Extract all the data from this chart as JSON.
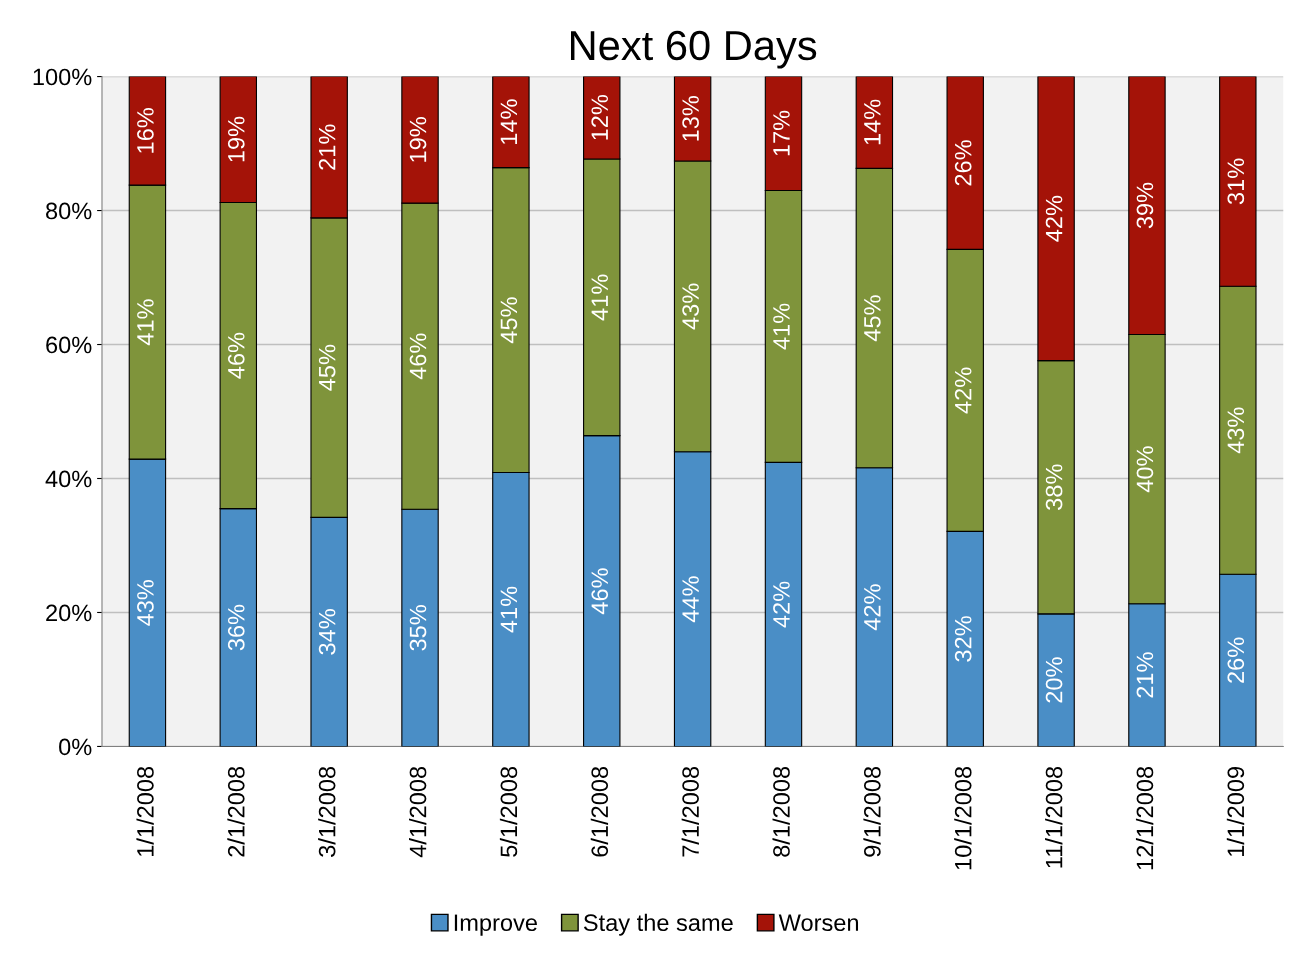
{
  "chart_data": {
    "type": "bar",
    "title": "Next 60 Days",
    "stacked": true,
    "categories": [
      "1/1/2008",
      "2/1/2008",
      "3/1/2008",
      "4/1/2008",
      "5/1/2008",
      "6/1/2008",
      "7/1/2008",
      "8/1/2008",
      "9/1/2008",
      "10/1/2008",
      "11/1/2008",
      "12/1/2008",
      "1/1/2009"
    ],
    "series": [
      {
        "name": "Improve",
        "color": "#4a8ec6",
        "values": [
          42.9,
          35.5,
          34.2,
          35.4,
          40.9,
          46.4,
          44.0,
          42.4,
          41.6,
          32.1,
          19.8,
          21.3,
          25.7
        ],
        "value_labels": [
          "43%",
          "36%",
          "34%",
          "35%",
          "41%",
          "46%",
          "44%",
          "42%",
          "42%",
          "32%",
          "20%",
          "21%",
          "26%"
        ]
      },
      {
        "name": "Stay the same",
        "color": "#7f943b",
        "values": [
          40.9,
          45.7,
          44.7,
          45.7,
          45.5,
          41.3,
          43.4,
          40.6,
          44.7,
          42.1,
          37.8,
          40.2,
          43.0
        ],
        "value_labels": [
          "41%",
          "46%",
          "45%",
          "46%",
          "45%",
          "41%",
          "43%",
          "41%",
          "45%",
          "42%",
          "38%",
          "40%",
          "43%"
        ]
      },
      {
        "name": "Worsen",
        "color": "#a41308",
        "values": [
          16.2,
          18.8,
          21.1,
          18.9,
          13.6,
          12.3,
          12.6,
          17.0,
          13.7,
          25.8,
          42.4,
          38.5,
          31.3
        ],
        "value_labels": [
          "16%",
          "19%",
          "21%",
          "19%",
          "14%",
          "12%",
          "13%",
          "17%",
          "14%",
          "26%",
          "42%",
          "39%",
          "31%"
        ]
      }
    ],
    "ylim": [
      0,
      100
    ],
    "yticks": [
      {
        "value": 0,
        "label": "0%"
      },
      {
        "value": 20,
        "label": "20%"
      },
      {
        "value": 40,
        "label": "40%"
      },
      {
        "value": 60,
        "label": "60%"
      },
      {
        "value": 80,
        "label": "80%"
      },
      {
        "value": 100,
        "label": "100%"
      }
    ],
    "grid": "y",
    "legend": "bottom"
  }
}
